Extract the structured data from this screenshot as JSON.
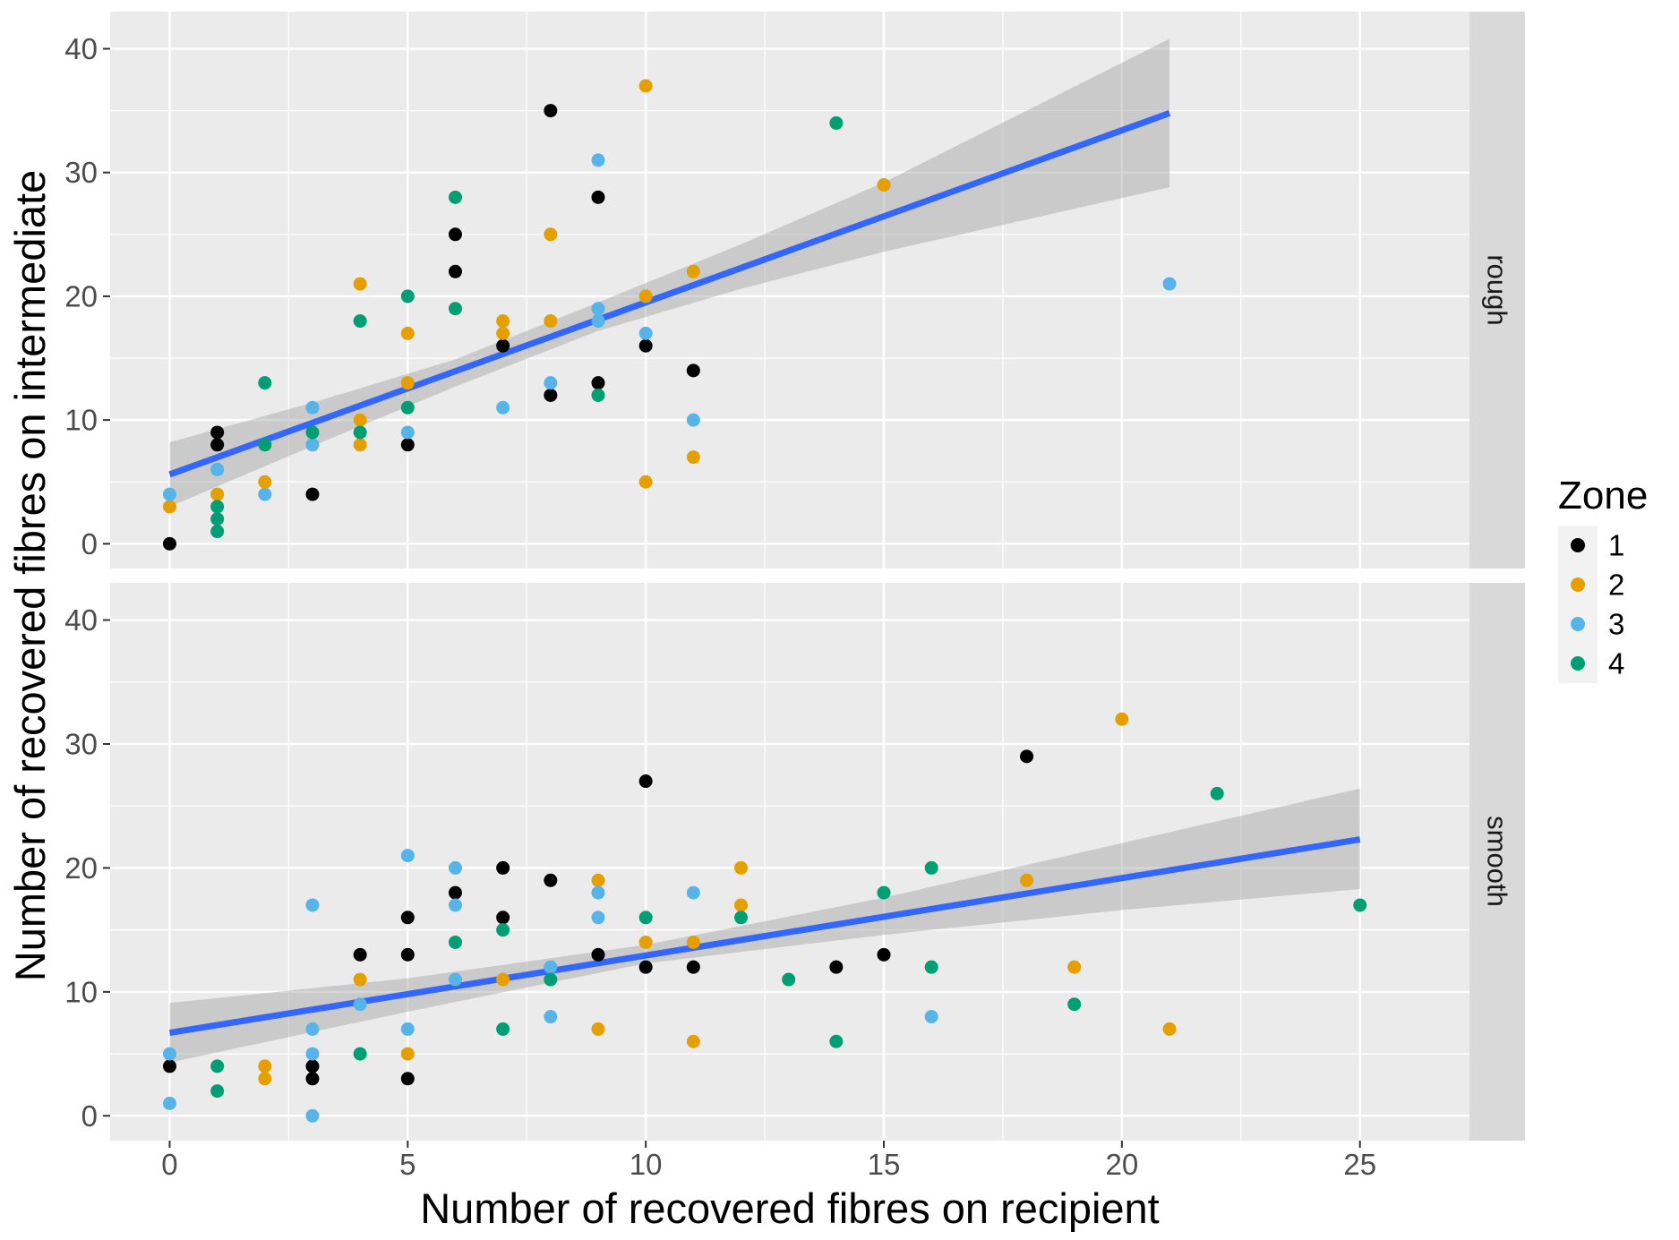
{
  "chart_data": {
    "type": "scatter",
    "xlabel": "Number of recovered fibres on recipient",
    "ylabel": "Number of recovered fibres on intermediate",
    "xlim": [
      -1.25,
      27.3
    ],
    "ylim": [
      -2,
      43
    ],
    "x_ticks": [
      "0",
      "5",
      "10",
      "15",
      "20",
      "25"
    ],
    "y_ticks": [
      "0",
      "10",
      "20",
      "30",
      "40"
    ],
    "grid": true,
    "legend": {
      "title": "Zone",
      "placement": "right",
      "entries": [
        {
          "label": "1",
          "color": "#000000"
        },
        {
          "label": "2",
          "color": "#E69F00"
        },
        {
          "label": "3",
          "color": "#56B4E9"
        },
        {
          "label": "4",
          "color": "#009E73"
        }
      ]
    },
    "trend_color": "#3366FF",
    "band_color": "#999999",
    "panels": [
      {
        "name": "rough",
        "fit": {
          "x": [
            0,
            21
          ],
          "y": [
            5.6,
            34.8
          ]
        },
        "band": {
          "x": [
            0,
            3,
            6,
            9,
            12,
            15,
            18,
            21
          ],
          "lower": [
            3.0,
            7.9,
            12.7,
            17.2,
            20.6,
            23.6,
            26.2,
            28.8
          ],
          "upper": [
            8.2,
            11.4,
            14.9,
            19.5,
            24.2,
            29.2,
            35.0,
            40.8
          ]
        },
        "points": [
          {
            "x": 0,
            "y": 0,
            "zone": 1
          },
          {
            "x": 0,
            "y": 3,
            "zone": 2
          },
          {
            "x": 0,
            "y": 4,
            "zone": 3
          },
          {
            "x": 1,
            "y": 9,
            "zone": 1
          },
          {
            "x": 1,
            "y": 8,
            "zone": 1
          },
          {
            "x": 1,
            "y": 4,
            "zone": 2
          },
          {
            "x": 1,
            "y": 6,
            "zone": 3
          },
          {
            "x": 1,
            "y": 3,
            "zone": 4
          },
          {
            "x": 1,
            "y": 2,
            "zone": 4
          },
          {
            "x": 1,
            "y": 1,
            "zone": 4
          },
          {
            "x": 2,
            "y": 5,
            "zone": 2
          },
          {
            "x": 2,
            "y": 4,
            "zone": 3
          },
          {
            "x": 2,
            "y": 8,
            "zone": 4
          },
          {
            "x": 2,
            "y": 13,
            "zone": 4
          },
          {
            "x": 3,
            "y": 4,
            "zone": 1
          },
          {
            "x": 3,
            "y": 11,
            "zone": 3
          },
          {
            "x": 3,
            "y": 8,
            "zone": 3
          },
          {
            "x": 3,
            "y": 9,
            "zone": 4
          },
          {
            "x": 4,
            "y": 21,
            "zone": 2
          },
          {
            "x": 4,
            "y": 10,
            "zone": 2
          },
          {
            "x": 4,
            "y": 8,
            "zone": 2
          },
          {
            "x": 4,
            "y": 18,
            "zone": 4
          },
          {
            "x": 4,
            "y": 9,
            "zone": 4
          },
          {
            "x": 5,
            "y": 8,
            "zone": 1
          },
          {
            "x": 5,
            "y": 17,
            "zone": 2
          },
          {
            "x": 5,
            "y": 13,
            "zone": 2
          },
          {
            "x": 5,
            "y": 9,
            "zone": 3
          },
          {
            "x": 5,
            "y": 20,
            "zone": 4
          },
          {
            "x": 5,
            "y": 11,
            "zone": 4
          },
          {
            "x": 6,
            "y": 25,
            "zone": 1
          },
          {
            "x": 6,
            "y": 22,
            "zone": 1
          },
          {
            "x": 6,
            "y": 28,
            "zone": 4
          },
          {
            "x": 6,
            "y": 19,
            "zone": 4
          },
          {
            "x": 7,
            "y": 16,
            "zone": 1
          },
          {
            "x": 7,
            "y": 18,
            "zone": 2
          },
          {
            "x": 7,
            "y": 17,
            "zone": 2
          },
          {
            "x": 7,
            "y": 11,
            "zone": 3
          },
          {
            "x": 8,
            "y": 35,
            "zone": 1
          },
          {
            "x": 8,
            "y": 12,
            "zone": 1
          },
          {
            "x": 8,
            "y": 25,
            "zone": 2
          },
          {
            "x": 8,
            "y": 18,
            "zone": 2
          },
          {
            "x": 8,
            "y": 13,
            "zone": 3
          },
          {
            "x": 9,
            "y": 28,
            "zone": 1
          },
          {
            "x": 9,
            "y": 13,
            "zone": 1
          },
          {
            "x": 9,
            "y": 31,
            "zone": 3
          },
          {
            "x": 9,
            "y": 19,
            "zone": 3
          },
          {
            "x": 9,
            "y": 18,
            "zone": 3
          },
          {
            "x": 9,
            "y": 12,
            "zone": 4
          },
          {
            "x": 10,
            "y": 16,
            "zone": 1
          },
          {
            "x": 10,
            "y": 37,
            "zone": 2
          },
          {
            "x": 10,
            "y": 20,
            "zone": 2
          },
          {
            "x": 10,
            "y": 5,
            "zone": 2
          },
          {
            "x": 10,
            "y": 17,
            "zone": 3
          },
          {
            "x": 11,
            "y": 14,
            "zone": 1
          },
          {
            "x": 11,
            "y": 22,
            "zone": 2
          },
          {
            "x": 11,
            "y": 7,
            "zone": 2
          },
          {
            "x": 11,
            "y": 10,
            "zone": 3
          },
          {
            "x": 14,
            "y": 34,
            "zone": 4
          },
          {
            "x": 15,
            "y": 29,
            "zone": 2
          },
          {
            "x": 21,
            "y": 21,
            "zone": 3
          }
        ]
      },
      {
        "name": "smooth",
        "fit": {
          "x": [
            0,
            25
          ],
          "y": [
            6.7,
            22.3
          ]
        },
        "band": {
          "x": [
            0,
            5,
            10,
            15,
            20,
            25
          ],
          "lower": [
            4.3,
            8.4,
            12.3,
            14.6,
            16.6,
            18.3
          ],
          "upper": [
            9.1,
            11.1,
            13.8,
            17.6,
            22.0,
            26.4
          ]
        },
        "points": [
          {
            "x": 0,
            "y": 4,
            "zone": 1
          },
          {
            "x": 0,
            "y": 5,
            "zone": 3
          },
          {
            "x": 0,
            "y": 1,
            "zone": 3
          },
          {
            "x": 1,
            "y": 4,
            "zone": 4
          },
          {
            "x": 1,
            "y": 2,
            "zone": 4
          },
          {
            "x": 2,
            "y": 4,
            "zone": 2
          },
          {
            "x": 2,
            "y": 3,
            "zone": 2
          },
          {
            "x": 3,
            "y": 4,
            "zone": 1
          },
          {
            "x": 3,
            "y": 3,
            "zone": 1
          },
          {
            "x": 3,
            "y": 17,
            "zone": 3
          },
          {
            "x": 3,
            "y": 7,
            "zone": 3
          },
          {
            "x": 3,
            "y": 5,
            "zone": 3
          },
          {
            "x": 3,
            "y": 0,
            "zone": 3
          },
          {
            "x": 4,
            "y": 13,
            "zone": 1
          },
          {
            "x": 4,
            "y": 11,
            "zone": 2
          },
          {
            "x": 4,
            "y": 9,
            "zone": 3
          },
          {
            "x": 4,
            "y": 5,
            "zone": 4
          },
          {
            "x": 5,
            "y": 16,
            "zone": 1
          },
          {
            "x": 5,
            "y": 13,
            "zone": 1
          },
          {
            "x": 5,
            "y": 3,
            "zone": 1
          },
          {
            "x": 5,
            "y": 5,
            "zone": 2
          },
          {
            "x": 5,
            "y": 21,
            "zone": 3
          },
          {
            "x": 5,
            "y": 7,
            "zone": 3
          },
          {
            "x": 6,
            "y": 18,
            "zone": 1
          },
          {
            "x": 6,
            "y": 20,
            "zone": 3
          },
          {
            "x": 6,
            "y": 17,
            "zone": 3
          },
          {
            "x": 6,
            "y": 11,
            "zone": 3
          },
          {
            "x": 6,
            "y": 14,
            "zone": 4
          },
          {
            "x": 7,
            "y": 20,
            "zone": 1
          },
          {
            "x": 7,
            "y": 16,
            "zone": 1
          },
          {
            "x": 7,
            "y": 11,
            "zone": 2
          },
          {
            "x": 7,
            "y": 15,
            "zone": 4
          },
          {
            "x": 7,
            "y": 7,
            "zone": 4
          },
          {
            "x": 8,
            "y": 19,
            "zone": 1
          },
          {
            "x": 8,
            "y": 12,
            "zone": 3
          },
          {
            "x": 8,
            "y": 8,
            "zone": 3
          },
          {
            "x": 8,
            "y": 11,
            "zone": 4
          },
          {
            "x": 9,
            "y": 13,
            "zone": 1
          },
          {
            "x": 9,
            "y": 19,
            "zone": 2
          },
          {
            "x": 9,
            "y": 7,
            "zone": 2
          },
          {
            "x": 9,
            "y": 18,
            "zone": 3
          },
          {
            "x": 9,
            "y": 16,
            "zone": 3
          },
          {
            "x": 10,
            "y": 27,
            "zone": 1
          },
          {
            "x": 10,
            "y": 12,
            "zone": 1
          },
          {
            "x": 10,
            "y": 14,
            "zone": 2
          },
          {
            "x": 10,
            "y": 16,
            "zone": 4
          },
          {
            "x": 11,
            "y": 12,
            "zone": 1
          },
          {
            "x": 11,
            "y": 14,
            "zone": 2
          },
          {
            "x": 11,
            "y": 6,
            "zone": 2
          },
          {
            "x": 11,
            "y": 18,
            "zone": 3
          },
          {
            "x": 12,
            "y": 20,
            "zone": 2
          },
          {
            "x": 12,
            "y": 17,
            "zone": 2
          },
          {
            "x": 12,
            "y": 16,
            "zone": 4
          },
          {
            "x": 13,
            "y": 11,
            "zone": 4
          },
          {
            "x": 14,
            "y": 12,
            "zone": 1
          },
          {
            "x": 14,
            "y": 6,
            "zone": 4
          },
          {
            "x": 15,
            "y": 13,
            "zone": 1
          },
          {
            "x": 15,
            "y": 18,
            "zone": 4
          },
          {
            "x": 16,
            "y": 8,
            "zone": 3
          },
          {
            "x": 16,
            "y": 20,
            "zone": 4
          },
          {
            "x": 16,
            "y": 12,
            "zone": 4
          },
          {
            "x": 18,
            "y": 29,
            "zone": 1
          },
          {
            "x": 18,
            "y": 19,
            "zone": 2
          },
          {
            "x": 19,
            "y": 12,
            "zone": 2
          },
          {
            "x": 19,
            "y": 9,
            "zone": 4
          },
          {
            "x": 20,
            "y": 32,
            "zone": 2
          },
          {
            "x": 21,
            "y": 7,
            "zone": 2
          },
          {
            "x": 22,
            "y": 26,
            "zone": 4
          },
          {
            "x": 25,
            "y": 17,
            "zone": 4
          }
        ]
      }
    ]
  }
}
